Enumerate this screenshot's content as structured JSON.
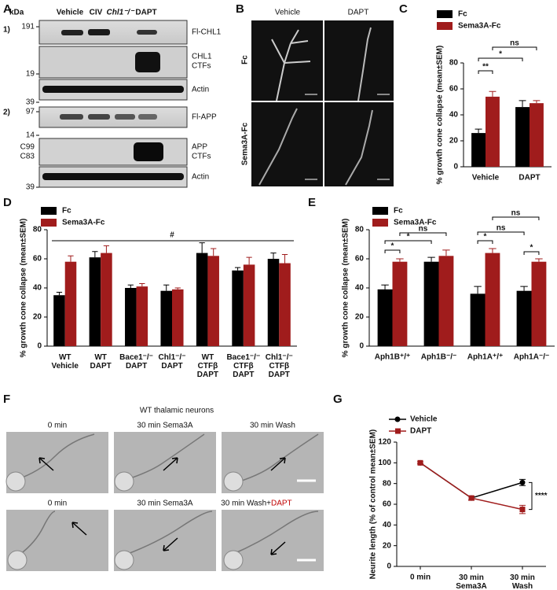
{
  "panel_labels": [
    "A",
    "B",
    "C",
    "D",
    "E",
    "F",
    "G"
  ],
  "blots": {
    "size_header": "kDa",
    "lanes": [
      "Vehicle",
      "CIV",
      "Chl1⁻/⁻",
      "DAPT"
    ],
    "sets": [
      "1)",
      "2)"
    ],
    "markers": [
      "191",
      "19",
      "39",
      "97",
      "14",
      "C99",
      "C83",
      "39"
    ],
    "rows": [
      "Fl-CHL1",
      "CHL1",
      "CTFs",
      "Actin",
      "Fl-APP",
      "APP",
      "CTFs",
      "Actin"
    ]
  },
  "microscopy": {
    "columns": [
      "Vehicle",
      "DAPT"
    ],
    "rows": [
      "Fc",
      "Sema3A-Fc"
    ]
  },
  "timelapse": {
    "title": "WT thalamic neurons",
    "top": [
      "0 min",
      "30 min Sema3A",
      "30 min Wash"
    ],
    "bottom": [
      "0 min",
      "30 min Sema3A",
      "30 min Wash+"
    ],
    "drug": "DAPT"
  },
  "chart_data": [
    {
      "type": "bar",
      "ylabel": "% growth cone collapse (mean±SEM)",
      "categories": [
        "Vehicle",
        "DAPT"
      ],
      "series": [
        {
          "name": "Fc",
          "color": "#000000",
          "values": [
            26,
            46
          ],
          "errors": [
            3,
            5
          ]
        },
        {
          "name": "Sema3A-Fc",
          "color": "#a01c1c",
          "values": [
            54,
            49
          ],
          "errors": [
            4,
            2
          ]
        }
      ],
      "ylim": [
        0,
        80
      ],
      "yticks": [
        0,
        20,
        40,
        60,
        80
      ],
      "annotations": [
        "**",
        "*",
        "ns"
      ]
    },
    {
      "type": "bar",
      "ylabel": "% growth cone collapse (mean±SEM)",
      "categories": [
        "WT\nVehicle",
        "WT\nDAPT",
        "Bace1⁻/⁻\nDAPT",
        "Chl1⁻/⁻\nDAPT",
        "WT\nCTFβ\nDAPT",
        "Bace1⁻/⁻\nCTFβ\nDAPT",
        "Chl1⁻/⁻\nCTFβ\nDAPT"
      ],
      "series": [
        {
          "name": "Fc",
          "color": "#000000",
          "values": [
            35,
            61,
            40,
            38,
            64,
            52,
            60
          ],
          "errors": [
            2,
            4,
            2,
            4,
            7,
            2,
            4
          ]
        },
        {
          "name": "Sema3A-Fc",
          "color": "#a01c1c",
          "values": [
            58,
            64,
            41,
            39,
            62,
            56,
            57
          ],
          "errors": [
            4,
            5,
            2,
            1,
            5,
            5,
            6
          ]
        }
      ],
      "ylim": [
        0,
        80
      ],
      "yticks": [
        0,
        20,
        40,
        60,
        80
      ],
      "annotations": [
        "#"
      ]
    },
    {
      "type": "bar",
      "ylabel": "% growth cone collapse (mean±SEM)",
      "categories": [
        "Aph1B⁺/⁺",
        "Aph1B⁻/⁻",
        "Aph1A⁺/⁺",
        "Aph1A⁻/⁻"
      ],
      "series": [
        {
          "name": "Fc",
          "color": "#000000",
          "values": [
            39,
            58,
            36,
            38
          ],
          "errors": [
            3,
            3,
            5,
            3
          ]
        },
        {
          "name": "Sema3A-Fc",
          "color": "#a01c1c",
          "values": [
            58,
            62,
            64,
            58
          ],
          "errors": [
            2,
            4,
            3,
            2
          ]
        }
      ],
      "ylim": [
        0,
        80
      ],
      "yticks": [
        0,
        20,
        40,
        60,
        80
      ],
      "annotations": [
        "*",
        "*",
        "ns",
        "*",
        "ns",
        "ns",
        "*"
      ]
    },
    {
      "type": "line",
      "ylabel": "Neurite length (% of control mean±SEM)",
      "categories": [
        "0 min",
        "30 min\nSema3A",
        "30 min\nWash"
      ],
      "series": [
        {
          "name": "Vehicle",
          "color": "#000000",
          "marker": "circle",
          "values": [
            100,
            66,
            81
          ],
          "errors": [
            1,
            2,
            3
          ]
        },
        {
          "name": "DAPT",
          "color": "#a01c1c",
          "marker": "square",
          "values": [
            100,
            66,
            55
          ],
          "errors": [
            1,
            2,
            4
          ]
        }
      ],
      "ylim": [
        0,
        120
      ],
      "yticks": [
        0,
        20,
        40,
        60,
        80,
        100,
        120
      ],
      "annotations": [
        "****"
      ]
    }
  ]
}
